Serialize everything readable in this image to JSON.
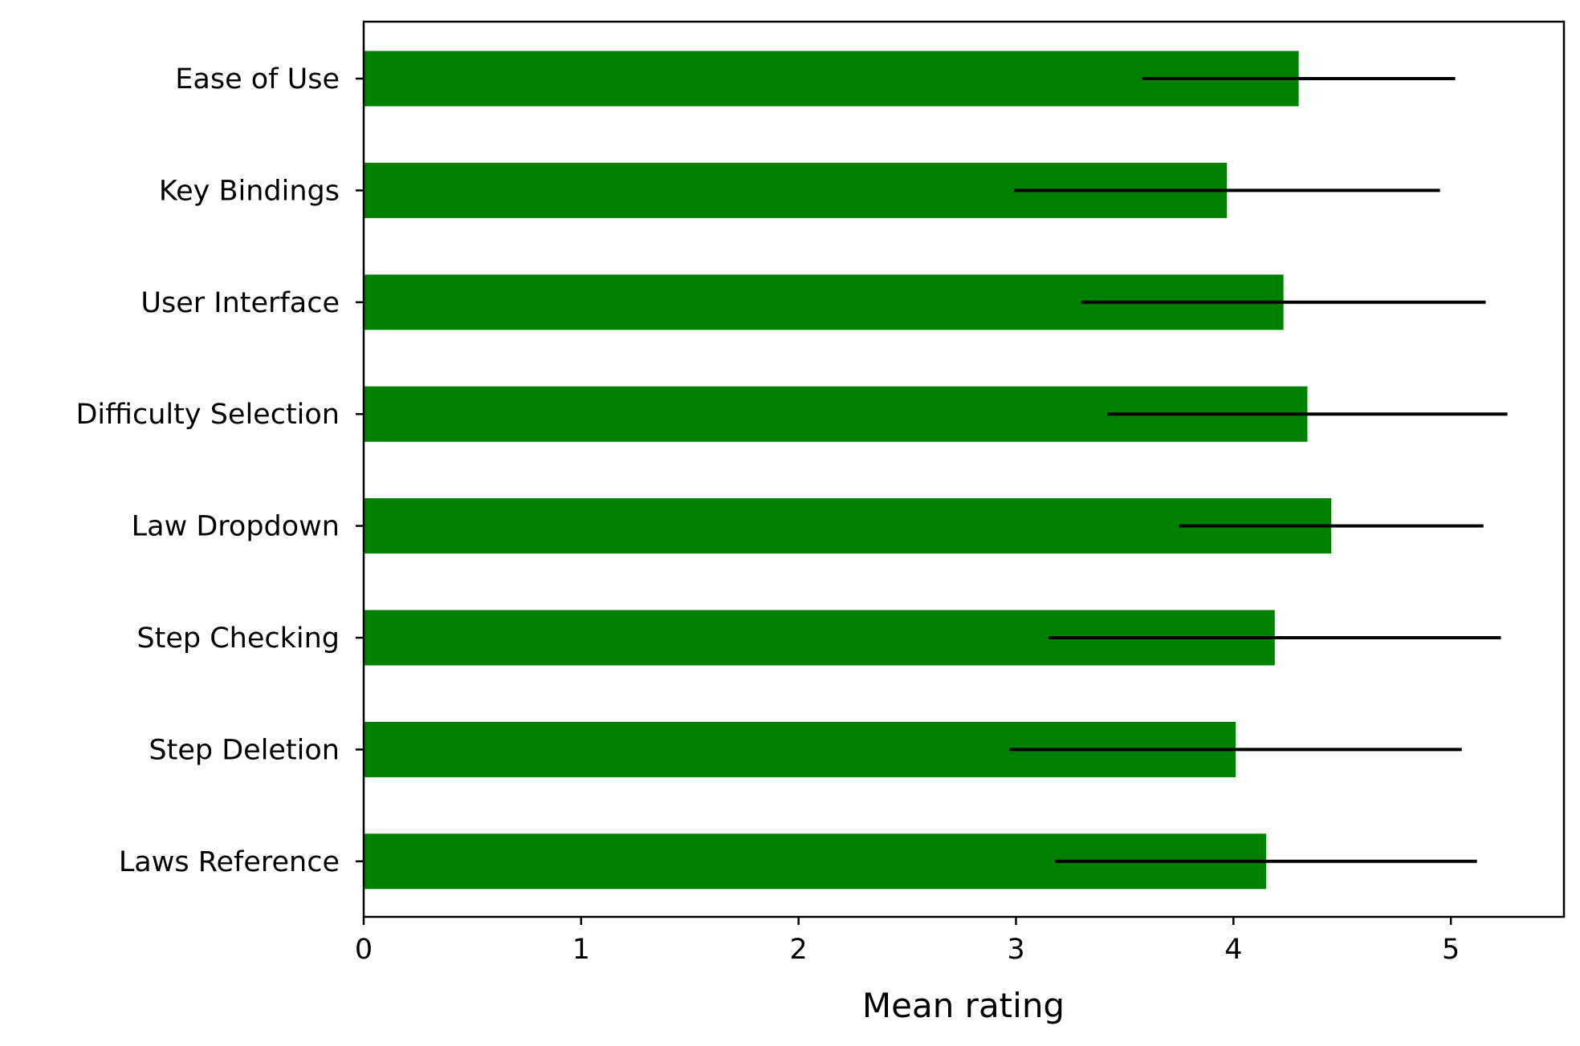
{
  "chart_data": {
    "type": "bar",
    "orientation": "horizontal",
    "categories": [
      "Ease of Use",
      "Key Bindings",
      "User Interface",
      "Difficulty Selection",
      "Law Dropdown",
      "Step Checking",
      "Step Deletion",
      "Laws Reference"
    ],
    "values": [
      4.3,
      3.97,
      4.23,
      4.34,
      4.45,
      4.19,
      4.01,
      4.15
    ],
    "error": [
      0.72,
      0.98,
      0.93,
      0.92,
      0.7,
      1.04,
      1.04,
      0.97
    ],
    "xlabel": "Mean rating",
    "ylabel": "",
    "title": "",
    "xlim": [
      0,
      5.52
    ],
    "x_ticks": [
      "0",
      "1",
      "2",
      "3",
      "4",
      "5"
    ],
    "bar_color": "#008000",
    "error_color": "#000000",
    "grid": false,
    "legend": "none"
  }
}
